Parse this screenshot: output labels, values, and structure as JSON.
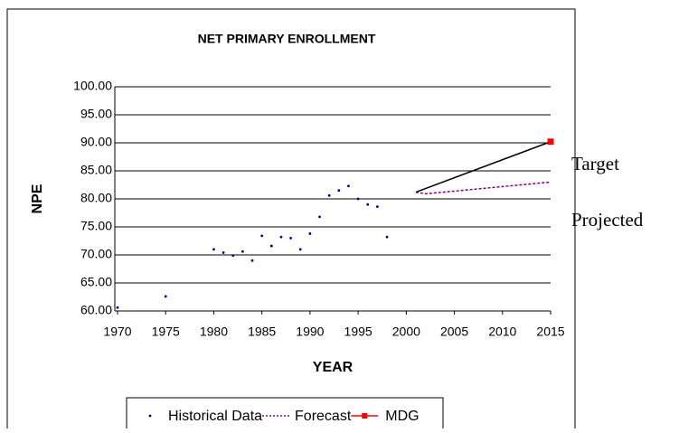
{
  "chart_data": {
    "type": "line",
    "title": "NET PRIMARY ENROLLMENT",
    "x_label": "YEAR",
    "y_label": "NPE",
    "annotations": [
      "Target",
      "Projected"
    ],
    "xlim": [
      1970,
      2015
    ],
    "xticks": [
      1970,
      1975,
      1980,
      1985,
      1990,
      1995,
      2000,
      2005,
      2010,
      2015
    ],
    "ylim": [
      60,
      100
    ],
    "yticks": [
      {
        "value": 60,
        "label": "60.00"
      },
      {
        "value": 65,
        "label": "65.00"
      },
      {
        "value": 70,
        "label": "70.00"
      },
      {
        "value": 75,
        "label": "75.00"
      },
      {
        "value": 80,
        "label": "80.00"
      },
      {
        "value": 85,
        "label": "85.00"
      },
      {
        "value": 90,
        "label": "90.00"
      },
      {
        "value": 95,
        "label": "95.00"
      },
      {
        "value": 100,
        "label": "100.00"
      }
    ],
    "grid": true,
    "legend": "bottom",
    "series": [
      {
        "name": "Historical Data",
        "style": "points",
        "color": "#000080",
        "x": [
          1970,
          1975,
          1980,
          1981,
          1982,
          1983,
          1984,
          1985,
          1986,
          1987,
          1988,
          1989,
          1990,
          1991,
          1992,
          1993,
          1994,
          1995,
          1996,
          1997,
          1998
        ],
        "values": [
          60.6,
          62.6,
          71.0,
          70.4,
          69.9,
          70.6,
          69.0,
          73.4,
          71.6,
          73.2,
          73.0,
          71.0,
          73.8,
          76.8,
          80.6,
          81.5,
          82.3,
          80.0,
          79.0,
          78.6,
          73.2
        ]
      },
      {
        "name": "Forecast",
        "style": "dotted",
        "color": "#800080",
        "x": [
          2001,
          2002,
          2015
        ],
        "values": [
          81.2,
          80.9,
          83.0
        ]
      },
      {
        "name": "MDG",
        "style": "line-marker",
        "color": "#ff0000",
        "line_color": "#000000",
        "x": [
          2001,
          2015
        ],
        "values": [
          81.2,
          90.2
        ]
      }
    ]
  }
}
